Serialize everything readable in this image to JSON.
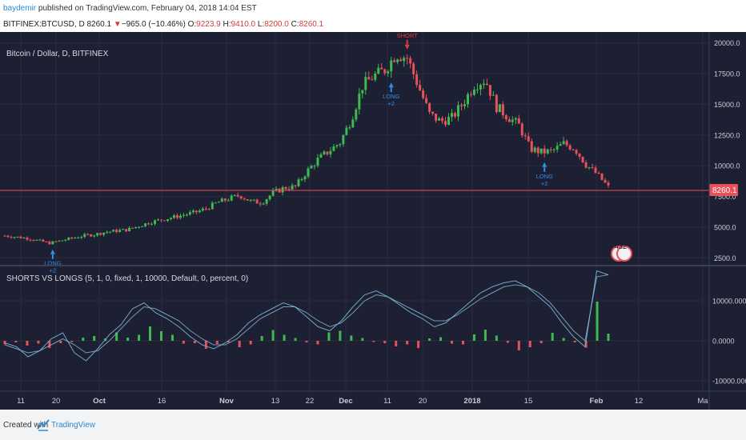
{
  "header": {
    "author": "baydemir",
    "published_text": " published on TradingView.com, February 04, 2018 14:04 EST",
    "symbol": "BITFINEX:BTCUSD, D",
    "last": "8260.1",
    "down_arrow": "▼",
    "change": "−965.0 (−10.46%)",
    "o_label": "O:",
    "o": "9223.9",
    "h_label": "H:",
    "h": "9410.0",
    "l_label": "L:",
    "l": "8200.0",
    "c_label": "C:",
    "c": "8260.1"
  },
  "price_pane": {
    "legend": "Bitcoin / Dollar, D, BITFINEX",
    "y_ticks": [
      "20000.0",
      "17500.0",
      "15000.0",
      "12500.0",
      "10000.0",
      "7500.0",
      "5000.0",
      "2500.0"
    ],
    "last_price_label": "8260.1",
    "badge": "432"
  },
  "indicator_pane": {
    "legend": "SHORTS VS LONGS (5, 1, 0, fixed, 1, 10000, Default, 0, percent, 0)",
    "y_ticks": [
      "10000.0000",
      "0.0000",
      "-10000.0000"
    ]
  },
  "x_axis": {
    "ticks": [
      "11",
      "20",
      "Oct",
      "16",
      "Nov",
      "13",
      "22",
      "Dec",
      "11",
      "20",
      "2018",
      "15",
      "Feb",
      "12",
      "Ma"
    ]
  },
  "signals": {
    "short_label": "SHORT",
    "short_sub": "-2",
    "long_label": "LONG",
    "long_sub": "+2"
  },
  "footer": {
    "created_with": "Created with",
    "brand": "TradingView"
  },
  "colors": {
    "background": "#1d2033",
    "up": "#3fb950",
    "down": "#e8505b",
    "long_arrow": "#2f8fe8",
    "short_arrow": "#e23b3b",
    "line": "#6fa8c8"
  },
  "chart_data": [
    {
      "type": "candlestick",
      "title": "Bitcoin / Dollar, D, BITFINEX",
      "ylim": [
        2000,
        20500
      ],
      "y_ticks": [
        20000,
        17500,
        15000,
        12500,
        10000,
        7500,
        5000,
        2500
      ],
      "x_ticks": [
        "11",
        "20",
        "Oct",
        "16",
        "Nov",
        "13",
        "22",
        "Dec",
        "11",
        "20",
        "2018",
        "15",
        "Feb",
        "12",
        "Ma"
      ],
      "close_approx": [
        4300,
        4200,
        4100,
        3900,
        3700,
        3900,
        4100,
        4300,
        4400,
        4600,
        4700,
        4800,
        5100,
        5400,
        5600,
        5800,
        6000,
        6200,
        6500,
        7000,
        7300,
        7600,
        7100,
        7000,
        7800,
        8200,
        8300,
        9500,
        10500,
        11200,
        11900,
        13800,
        16500,
        17300,
        17800,
        19100,
        18800,
        16500,
        14200,
        13600,
        13900,
        15100,
        16600,
        17000,
        14800,
        14000,
        13300,
        11400,
        11100,
        11200,
        11800,
        11400,
        10100,
        9300,
        8260
      ],
      "last": 8260.1,
      "signals": "SHORT -2 markers above swing highs, LONG +2 markers below swing lows"
    },
    {
      "type": "bar",
      "title": "SHORTS VS LONGS (5, 1, 0, fixed, 1, 10000, Default, 0, percent, 0)",
      "ylim": [
        -12000,
        18000
      ],
      "y_ticks": [
        10000,
        0,
        -10000
      ],
      "histogram_approx": [
        -900,
        -400,
        -1200,
        -700,
        -1800,
        -600,
        -300,
        800,
        1200,
        600,
        2100,
        800,
        1500,
        3600,
        2400,
        1500,
        -700,
        -600,
        -2000,
        -800,
        -400,
        -1600,
        -900,
        1200,
        2700,
        1500,
        700,
        -400,
        -900,
        2100,
        2500,
        1300,
        700,
        -300,
        -600,
        -1400,
        -900,
        -1800,
        600,
        900,
        -700,
        -900,
        1600,
        2800,
        1300,
        -500,
        -2400,
        -1600,
        -600,
        2000,
        700,
        -400,
        -1700,
        9800,
        1800
      ],
      "series": [
        {
          "name": "line 1",
          "values_approx": [
            -500,
            -1500,
            -4000,
            -2500,
            500,
            2000,
            -3000,
            -5000,
            -2000,
            1500,
            4000,
            8000,
            9500,
            7000,
            5500,
            3500,
            1000,
            -1000,
            -2000,
            -500,
            1500,
            4500,
            6500,
            8000,
            9500,
            8500,
            6000,
            3500,
            2500,
            5000,
            8500,
            11500,
            12500,
            11000,
            9000,
            7000,
            5500,
            3500,
            4500,
            7000,
            9500,
            12000,
            13500,
            14500,
            15000,
            13500,
            11000,
            8500,
            4500,
            1000,
            -1500,
            17500,
            16500
          ]
        },
        {
          "name": "line 2",
          "values_approx": [
            -1000,
            -2000,
            -3000,
            -2500,
            -1000,
            500,
            -1000,
            -3000,
            -2500,
            0,
            3000,
            6000,
            8500,
            8000,
            6500,
            5000,
            2500,
            500,
            -1000,
            -1000,
            500,
            3000,
            5500,
            7000,
            8500,
            8500,
            7000,
            5000,
            3500,
            4500,
            7000,
            10000,
            11500,
            11000,
            9500,
            8000,
            6500,
            5000,
            5000,
            6500,
            8500,
            10500,
            12000,
            13500,
            14000,
            13500,
            12000,
            9500,
            6000,
            2500,
            0,
            16000,
            16500
          ]
        }
      ]
    }
  ]
}
